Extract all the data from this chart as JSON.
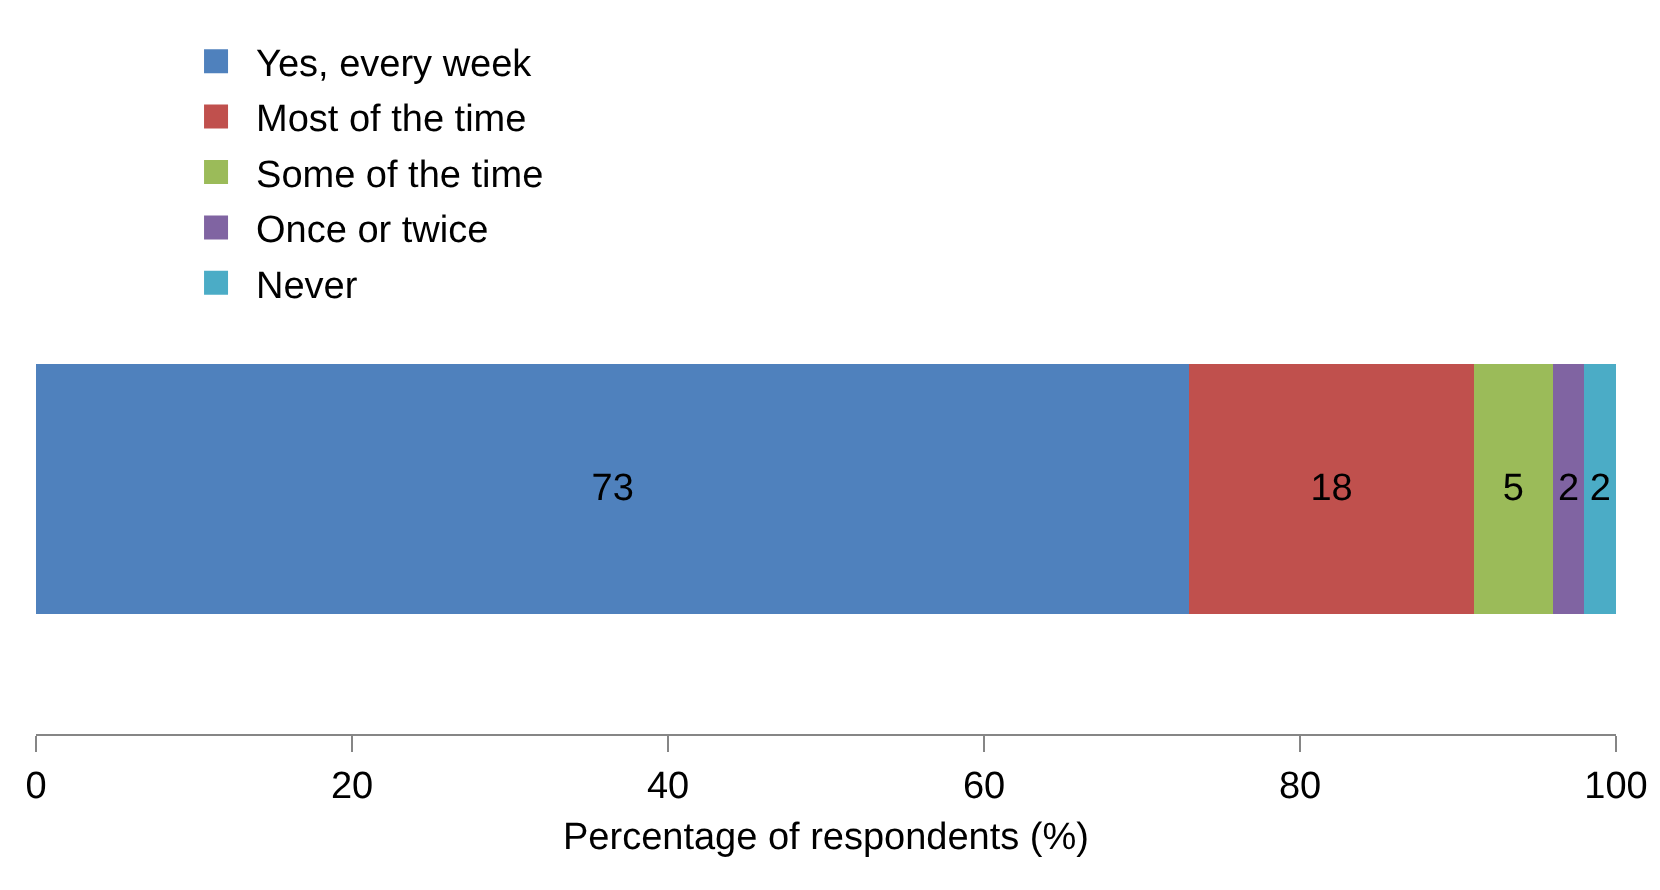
{
  "chart_data": {
    "type": "bar",
    "orientation": "horizontal",
    "stacked": true,
    "categories": [
      null
    ],
    "series": [
      {
        "name": "Yes, every week",
        "color": "#4f81bd",
        "values": [
          73
        ]
      },
      {
        "name": "Most of the time",
        "color": "#c0504d",
        "values": [
          18
        ]
      },
      {
        "name": "Some of the time",
        "color": "#9bbb59",
        "values": [
          5
        ]
      },
      {
        "name": "Once or twice",
        "color": "#8064a2",
        "values": [
          2
        ]
      },
      {
        "name": "Never",
        "color": "#4bacc6",
        "values": [
          2
        ]
      }
    ],
    "xlim": [
      0,
      100
    ],
    "xticks": [
      0,
      20,
      40,
      60,
      80,
      100
    ],
    "xlabel": "Percentage of respondents (%)",
    "data_labels": true,
    "legend": "top",
    "grid": false
  }
}
